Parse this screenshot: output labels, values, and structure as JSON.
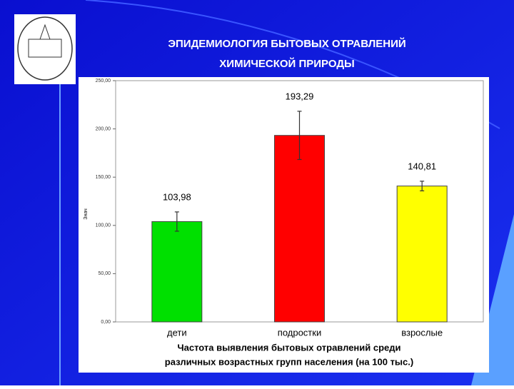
{
  "chart_data": {
    "type": "bar",
    "title": [
      "ЭПИДЕМИОЛОГИЯ БЫТОВЫХ ОТРАВЛЕНИЙ",
      "ХИМИЧЕСКОЙ ПРИРОДЫ"
    ],
    "ylabel": "Знач",
    "xlabel": [
      "Частота выявления бытовых отравлений среди",
      "различных возрастных групп населения (на 100 тыс.)"
    ],
    "categories": [
      "дети",
      "подростки",
      "взрослые"
    ],
    "values": [
      103.98,
      193.29,
      140.81
    ],
    "value_labels": [
      "103,98",
      "193,29",
      "140,81"
    ],
    "errors": [
      10,
      25,
      5
    ],
    "colors": [
      "#00e000",
      "#ff0000",
      "#ffff00"
    ],
    "ylim": [
      0,
      250
    ],
    "yticks": [
      {
        "value": 0,
        "label": "0,00"
      },
      {
        "value": 50,
        "label": "50,00"
      },
      {
        "value": 100,
        "label": "100,00"
      },
      {
        "value": 150,
        "label": "150,00"
      },
      {
        "value": 200,
        "label": "200,00"
      },
      {
        "value": 250,
        "label": "250,00"
      }
    ]
  }
}
